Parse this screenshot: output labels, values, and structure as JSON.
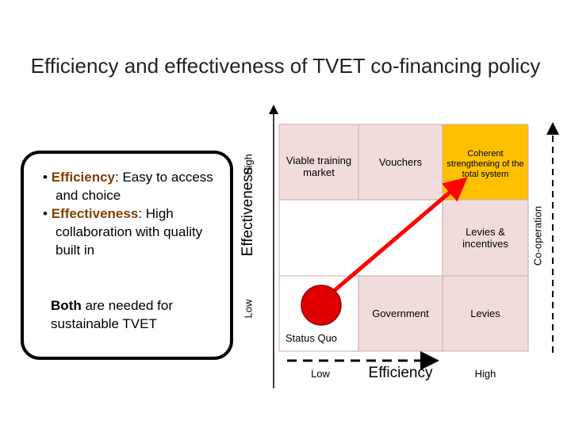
{
  "header": {
    "title": "Efficiency and effectiveness of TVET co-financing policy"
  },
  "box": {
    "bullets": [
      {
        "term": "Efficiency",
        "text": ": Easy to access and choice"
      },
      {
        "term": "Effectiveness",
        "text": ": High collaboration with quality built in"
      }
    ],
    "note": {
      "bold": "Both",
      "text": " are needed for sustainable TVET"
    }
  },
  "y_axis": {
    "label": "Effectiveness",
    "high": "High",
    "low": "Low"
  },
  "x_axis": {
    "label": "Efficiency",
    "high": "High",
    "low": "Low"
  },
  "right_axis": {
    "label": "Co-operation"
  },
  "status_quo": "Status Quo",
  "cells": [
    {
      "label": "Viable training market"
    },
    {
      "label": "Vouchers"
    },
    {
      "label": "Coherent strengthening of the total system"
    },
    {
      "label": "Levies & incentives"
    },
    {
      "label": "Government"
    },
    {
      "label": "Levies"
    }
  ]
}
